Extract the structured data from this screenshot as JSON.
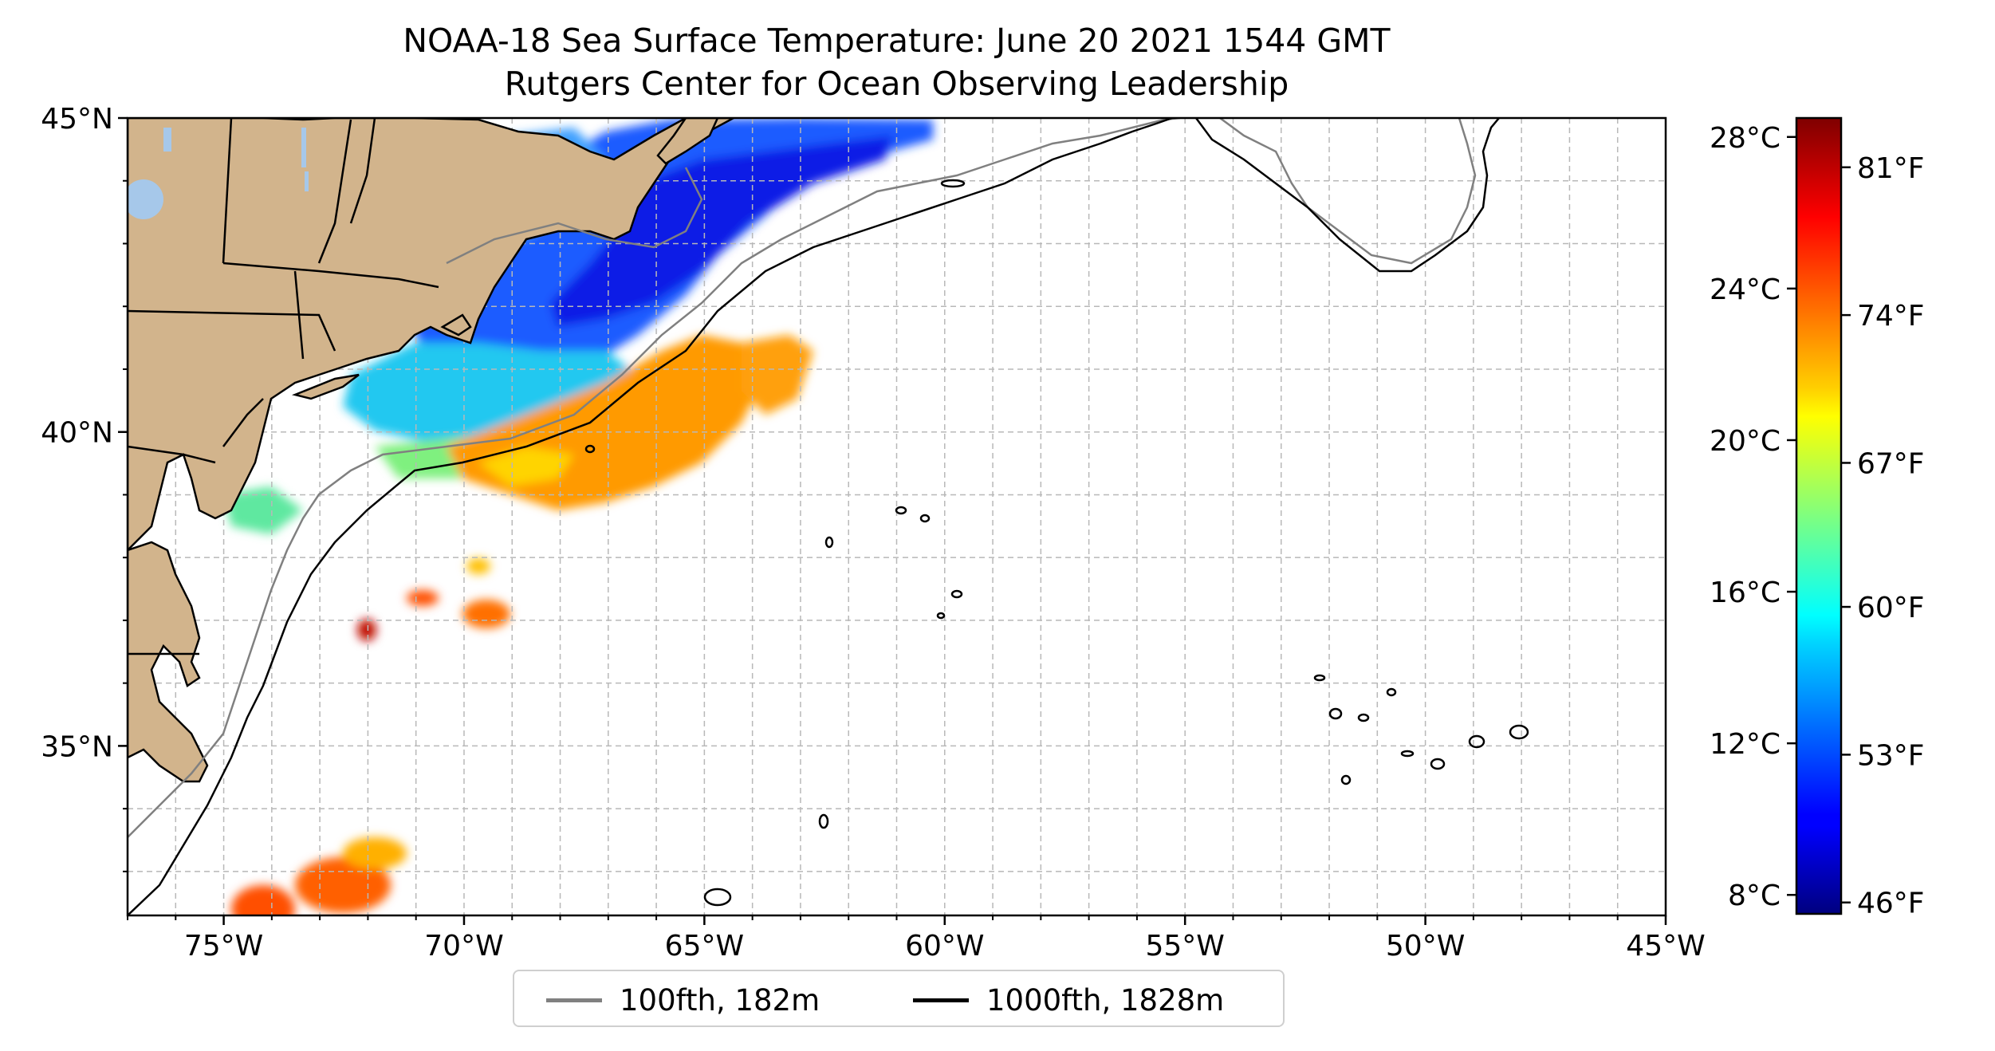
{
  "title": {
    "line1": "NOAA-18 Sea Surface Temperature: June 20 2021 1544 GMT",
    "line2": "Rutgers Center for Ocean Observing Leadership"
  },
  "map": {
    "lon_range": [
      -77,
      -45
    ],
    "lat_range": [
      32.3,
      45
    ],
    "lat_ticks": [
      {
        "value": 45,
        "label": "45°N"
      },
      {
        "value": 40,
        "label": "40°N"
      },
      {
        "value": 35,
        "label": "35°N"
      }
    ],
    "lon_ticks": [
      {
        "value": -75,
        "label": "75°W"
      },
      {
        "value": -70,
        "label": "70°W"
      },
      {
        "value": -65,
        "label": "65°W"
      },
      {
        "value": -60,
        "label": "60°W"
      },
      {
        "value": -55,
        "label": "55°W"
      },
      {
        "value": -50,
        "label": "50°W"
      },
      {
        "value": -45,
        "label": "45°W"
      }
    ],
    "gridlines": "dashed, every 1°",
    "land_color": "#d2b48c",
    "lake_color": "#a6c8ea"
  },
  "colorbar": {
    "colormap": "jet",
    "range_c": [
      7.5,
      28.5
    ],
    "celsius_labels": [
      "28°C",
      "24°C",
      "20°C",
      "16°C",
      "12°C",
      "8°C"
    ],
    "celsius_values": [
      28,
      24,
      20,
      16,
      12,
      8
    ],
    "fahrenheit_labels": [
      "81°F",
      "74°F",
      "67°F",
      "60°F",
      "53°F",
      "46°F"
    ],
    "fahrenheit_values_as_c": [
      27.2,
      23.3,
      19.4,
      15.6,
      11.7,
      7.8
    ]
  },
  "legend": {
    "items": [
      {
        "label": "100fth, 182m",
        "color": "#808080"
      },
      {
        "label": "1000fth, 1828m",
        "color": "#000000"
      }
    ]
  }
}
